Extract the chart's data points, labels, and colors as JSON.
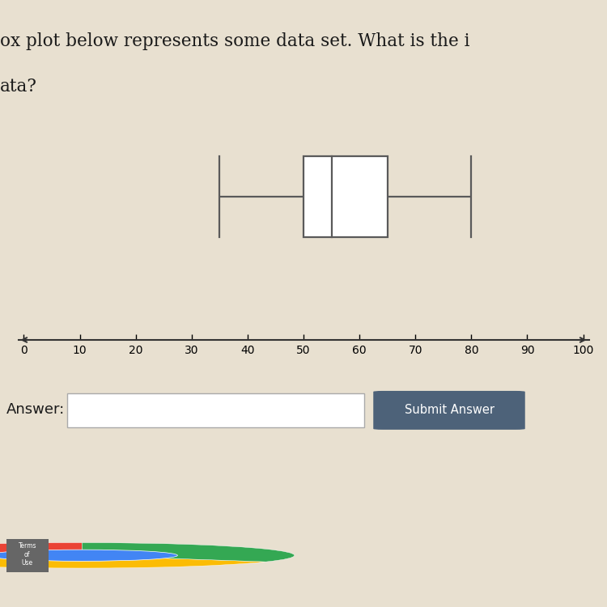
{
  "whisker_min": 35,
  "q1": 50,
  "median": 55,
  "q3": 65,
  "whisker_max": 80,
  "axis_min": 0,
  "axis_max": 100,
  "axis_ticks": [
    0,
    10,
    20,
    30,
    40,
    50,
    60,
    70,
    80,
    90,
    100
  ],
  "bg_color": "#e8e0d0",
  "box_color": "#ffffff",
  "box_edge_color": "#5a5a5a",
  "line_color": "#5a5a5a",
  "title_line1": "ox plot below represents some data set. What is the i",
  "title_line2": "ata?",
  "answer_label": "Answer:",
  "submit_label": "Submit Answer",
  "submit_bg": "#4d6279",
  "submit_text_color": "#ffffff",
  "input_border": "#cccccc",
  "separator_color": "#c8c0c0",
  "taskbar_color": "#b8c4cc",
  "taskbar_dark": "#1a1a1a",
  "terms_bg": "#666666",
  "terms_text": "Terms\nof\nUse"
}
